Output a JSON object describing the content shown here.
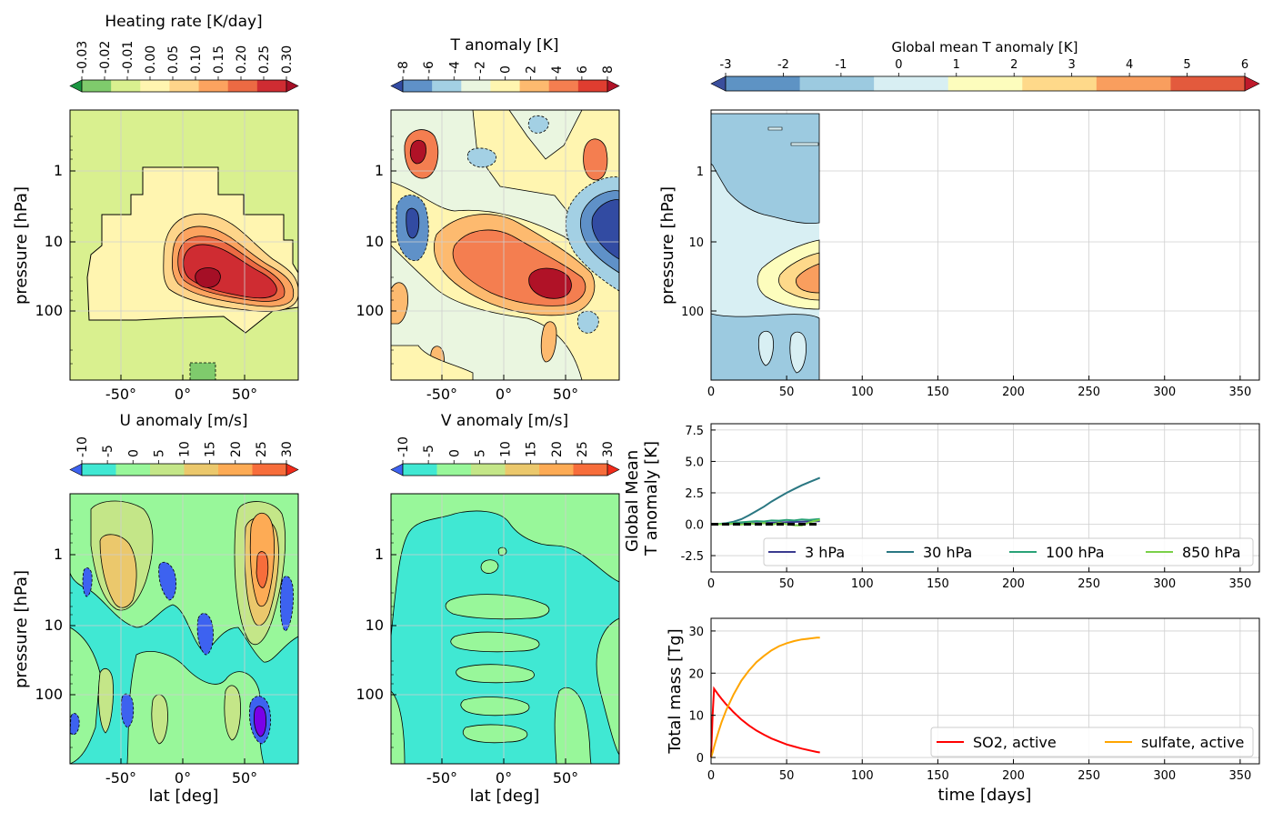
{
  "colorbars": {
    "heating": {
      "title": "Heating  rate [K/day]",
      "ticks": [
        "-0.03",
        "-0.02",
        "-0.01",
        "0.00",
        "0.05",
        "0.10",
        "0.15",
        "0.20",
        "0.25",
        "0.30"
      ],
      "colors": [
        "#1a9641",
        "#7fcb6c",
        "#d9f08f",
        "#fff5b0",
        "#fed58a",
        "#fca35f",
        "#ec6a43",
        "#cf2c32",
        "#a50f26"
      ]
    },
    "tanom": {
      "title": "T anomaly [K]",
      "ticks": [
        "-8",
        "-6",
        "-4",
        "-2",
        "0",
        "2",
        "4",
        "6",
        "8"
      ],
      "colors": [
        "#324ba2",
        "#5f91c8",
        "#a3d0e4",
        "#eaf6e0",
        "#fff5b0",
        "#fdba6f",
        "#f47e50",
        "#df3d30",
        "#b01227"
      ]
    },
    "uanom": {
      "title": "U anomaly [m/s]",
      "ticks": [
        "-10",
        "-5",
        "0",
        "5",
        "10",
        "15",
        "20",
        "25",
        "30"
      ],
      "colors": [
        "#3d62f0",
        "#40e8d3",
        "#98f79a",
        "#c4e688",
        "#ebc86c",
        "#fdab55",
        "#f76d3b",
        "#f22b1a"
      ]
    },
    "vanom": {
      "title": "V anomaly [m/s]",
      "ticks": [
        "-10",
        "-5",
        "0",
        "5",
        "10",
        "15",
        "20",
        "25",
        "30"
      ],
      "colors": [
        "#3d62f0",
        "#40e8d3",
        "#98f79a",
        "#c4e688",
        "#ebc86c",
        "#fdab55",
        "#f76d3b",
        "#f22b1a"
      ]
    },
    "global": {
      "title": "Global mean T anomaly [K]",
      "ticks": [
        "-3",
        "-2",
        "-1",
        "0",
        "1",
        "2",
        "3",
        "4",
        "5",
        "6"
      ],
      "colors": [
        "#3a4e9c",
        "#5e93c4",
        "#9ccae0",
        "#d8eff3",
        "#fdfdbd",
        "#fed98a",
        "#f99e5e",
        "#e35a3d",
        "#bf1a2b"
      ]
    }
  },
  "latlev_axes": {
    "ylabel": "pressure  [hPa]",
    "xlabel": "lat [deg]",
    "yticks": [
      "1",
      "10",
      "100"
    ],
    "xticks": [
      "-50°",
      "0°",
      "50°"
    ]
  },
  "hovmoller": {
    "ylabel": "pressure [hPa]",
    "yticks": [
      "1",
      "10",
      "100"
    ],
    "xticks": [
      "0",
      "50",
      "100",
      "150",
      "200",
      "250",
      "300",
      "350"
    ]
  },
  "chart_data": [
    {
      "type": "line",
      "ylabel": "Global Mean\nT anomaly [K]",
      "ylabel_lines": [
        "Global Mean",
        "T anomaly [K]"
      ],
      "xlim": [
        0,
        365
      ],
      "ylim": [
        -3.8,
        8
      ],
      "xticks": [
        "0",
        "50",
        "100",
        "150",
        "200",
        "250",
        "300",
        "350"
      ],
      "yticks": [
        "-2.5",
        "0.0",
        "2.5",
        "5.0",
        "7.5"
      ],
      "x": [
        0,
        5,
        10,
        15,
        20,
        25,
        30,
        35,
        40,
        45,
        50,
        55,
        60,
        65,
        70,
        72
      ],
      "series": [
        {
          "name": "3 hPa",
          "color": "#3a3b8f",
          "values": [
            0,
            0,
            0.02,
            0.03,
            0.05,
            0.06,
            0.08,
            0.1,
            0.12,
            0.14,
            0.16,
            0.18,
            0.2,
            0.22,
            0.24,
            0.25
          ]
        },
        {
          "name": "30 hPa",
          "color": "#2a7782",
          "values": [
            0,
            0.02,
            0.08,
            0.2,
            0.4,
            0.7,
            1.05,
            1.4,
            1.8,
            2.15,
            2.5,
            2.8,
            3.1,
            3.35,
            3.6,
            3.7
          ]
        },
        {
          "name": "100 hPa",
          "color": "#2aa277",
          "values": [
            0,
            0.02,
            0.05,
            0.1,
            0.15,
            0.2,
            0.25,
            0.22,
            0.3,
            0.28,
            0.35,
            0.3,
            0.38,
            0.34,
            0.4,
            0.42
          ]
        },
        {
          "name": "850 hPa",
          "color": "#7ad048",
          "values": [
            0,
            0,
            -0.02,
            0.05,
            -0.03,
            0.08,
            0.02,
            0.1,
            -0.05,
            0.12,
            0.0,
            -0.08,
            -0.1,
            0.15,
            0.3,
            0.35
          ]
        }
      ],
      "legend": [
        "3 hPa",
        "30 hPa",
        "100 hPa",
        "850 hPa"
      ]
    },
    {
      "type": "line",
      "ylabel": "Total mass [Tg]",
      "xlabel": "time [days]",
      "xlim": [
        0,
        365
      ],
      "ylim": [
        -1.5,
        33
      ],
      "xticks": [
        "0",
        "50",
        "100",
        "150",
        "200",
        "250",
        "300",
        "350"
      ],
      "yticks": [
        "0",
        "10",
        "20",
        "30"
      ],
      "x": [
        0,
        1,
        2,
        3,
        5,
        7,
        10,
        15,
        20,
        25,
        30,
        35,
        40,
        45,
        50,
        55,
        60,
        65,
        70,
        72
      ],
      "series": [
        {
          "name": "SO2, active",
          "color": "#ff0000",
          "values": [
            0,
            10,
            16.3,
            15.8,
            14.8,
            13.9,
            12.6,
            10.7,
            9.0,
            7.6,
            6.4,
            5.4,
            4.5,
            3.8,
            3.1,
            2.6,
            2.1,
            1.7,
            1.3,
            1.2
          ]
        },
        {
          "name": "sulfate, active",
          "color": "#ffa500",
          "values": [
            0,
            1.2,
            2.5,
            3.8,
            6.2,
            8.4,
            11.2,
            15.0,
            18.2,
            20.6,
            22.6,
            24.1,
            25.4,
            26.4,
            27.1,
            27.6,
            28.0,
            28.2,
            28.4,
            28.4
          ]
        }
      ],
      "legend": [
        "SO2, active",
        "sulfate, active"
      ]
    }
  ]
}
